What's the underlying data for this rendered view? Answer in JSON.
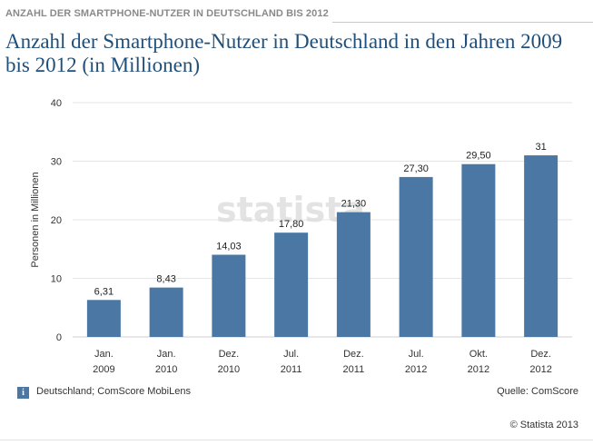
{
  "header": {
    "text": "ANZAHL DER SMARTPHONE-NUTZER IN DEUTSCHLAND BIS 2012"
  },
  "title": "Anzahl der Smartphone-Nutzer in Deutschland in den Jahren 2009 bis 2012 (in Millionen)",
  "watermark": "statista",
  "footer": {
    "info_icon": "i",
    "note": "Deutschland; ComScore MobiLens",
    "source": "Quelle: ComScore",
    "copyright": "© Statista 2013"
  },
  "colors": {
    "bar": "#4a77a4",
    "grid": "#e5e5e5",
    "title": "#1f4f7a"
  },
  "chart_data": {
    "type": "bar",
    "categories": [
      [
        "Jan.",
        "2009"
      ],
      [
        "Jan.",
        "2010"
      ],
      [
        "Dez.",
        "2010"
      ],
      [
        "Jul.",
        "2011"
      ],
      [
        "Dez.",
        "2011"
      ],
      [
        "Jul.",
        "2012"
      ],
      [
        "Okt.",
        "2012"
      ],
      [
        "Dez.",
        "2012"
      ]
    ],
    "values": [
      6.31,
      8.43,
      14.03,
      17.8,
      21.3,
      27.3,
      29.5,
      31
    ],
    "value_labels": [
      "6,31",
      "8,43",
      "14,03",
      "17,80",
      "21,30",
      "27,30",
      "29,50",
      "31"
    ],
    "ylabel": "Personen in Millionen",
    "xlabel": "",
    "ylim": [
      0,
      40
    ],
    "yticks": [
      0,
      10,
      20,
      30,
      40
    ],
    "grid": true
  }
}
